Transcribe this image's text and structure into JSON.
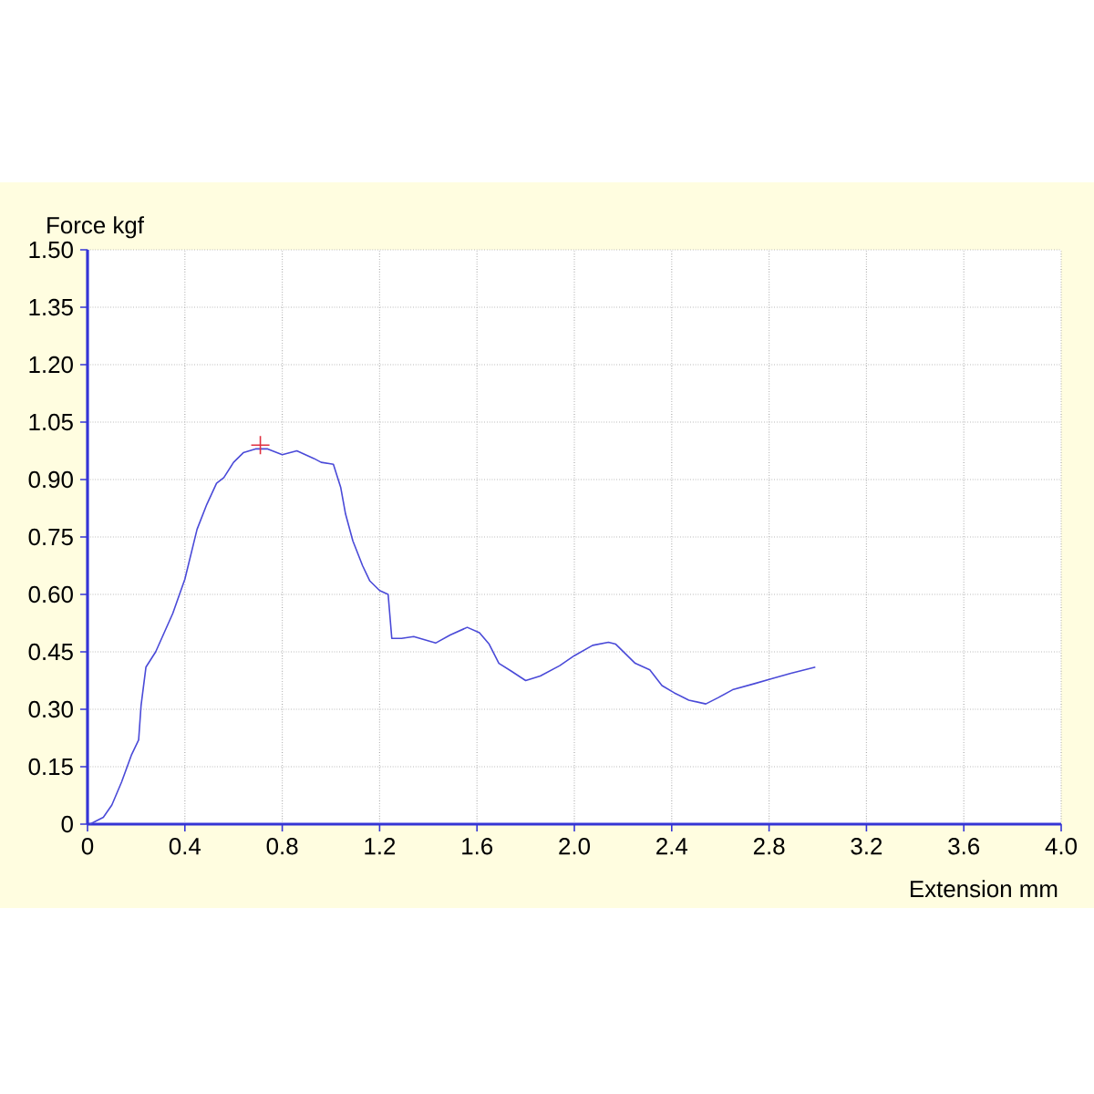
{
  "chart_data": {
    "type": "line",
    "xlabel": "Extension mm",
    "ylabel": "Force kgf",
    "xlim": [
      0,
      4.0
    ],
    "ylim": [
      0,
      1.5
    ],
    "xticks": [
      0,
      0.4,
      0.8,
      1.2,
      1.6,
      {
        "value": 2,
        "label": "2.0"
      },
      2.4,
      2.8,
      3.2,
      3.6,
      {
        "value": 4,
        "label": "4.0"
      }
    ],
    "yticks": [
      0,
      0.15,
      {
        "value": 0.3,
        "label": "0.30"
      },
      0.45,
      {
        "value": 0.6,
        "label": "0.60"
      },
      0.75,
      {
        "value": 0.9,
        "label": "0.90"
      },
      1.05,
      {
        "value": 1.2,
        "label": "1.20"
      },
      1.35,
      {
        "value": 1.5,
        "label": "1.50"
      }
    ],
    "grid": true,
    "series": [
      {
        "color": "#4a4ad8",
        "x": [
          0.01,
          0.065,
          0.1,
          0.14,
          0.18,
          0.21,
          0.22,
          0.24,
          0.28,
          0.315,
          0.35,
          0.4,
          0.45,
          0.49,
          0.53,
          0.56,
          0.6,
          0.64,
          0.69,
          0.74,
          0.8,
          0.86,
          0.93,
          0.96,
          1.01,
          1.04,
          1.06,
          1.09,
          1.13,
          1.16,
          1.2,
          1.235,
          1.25,
          1.29,
          1.34,
          1.43,
          1.49,
          1.56,
          1.61,
          1.65,
          1.69,
          1.74,
          1.8,
          1.86,
          1.94,
          2.0,
          2.075,
          2.14,
          2.17,
          2.25,
          2.31,
          2.36,
          2.41,
          2.47,
          2.54,
          2.59,
          2.65,
          2.74,
          2.81,
          2.89,
          2.99
        ],
        "values": [
          0.0,
          0.018,
          0.05,
          0.11,
          0.18,
          0.22,
          0.31,
          0.41,
          0.45,
          0.5,
          0.55,
          0.64,
          0.77,
          0.835,
          0.89,
          0.905,
          0.945,
          0.97,
          0.98,
          0.98,
          0.965,
          0.975,
          0.955,
          0.945,
          0.94,
          0.88,
          0.81,
          0.74,
          0.675,
          0.635,
          0.61,
          0.6,
          0.485,
          0.485,
          0.49,
          0.473,
          0.494,
          0.514,
          0.5,
          0.47,
          0.42,
          0.4,
          0.375,
          0.387,
          0.414,
          0.44,
          0.467,
          0.475,
          0.47,
          0.42,
          0.403,
          0.362,
          0.343,
          0.324,
          0.314,
          0.33,
          0.351,
          0.367,
          0.38,
          0.394,
          0.41
        ]
      },
      {
        "type": "scatter",
        "marker": "cross",
        "color": "#e03040",
        "x": [
          0.71
        ],
        "values": [
          0.99
        ]
      }
    ]
  }
}
